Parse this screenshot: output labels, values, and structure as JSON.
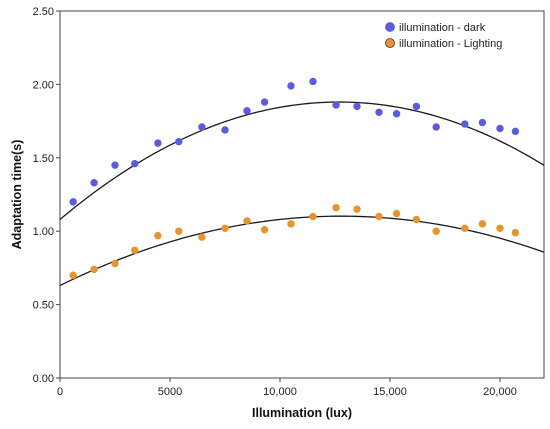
{
  "chart_data": {
    "type": "scatter",
    "xlabel": "Illumination (lux)",
    "ylabel": "Adaptation time(s)",
    "xlim": [
      0,
      22000
    ],
    "ylim": [
      0,
      2.5
    ],
    "x_ticks": [
      0,
      5000,
      10000,
      15000,
      20000
    ],
    "x_tick_labels": [
      "0",
      "5000",
      "10,000",
      "15,000",
      "20,000"
    ],
    "y_ticks": [
      0,
      0.5,
      1.0,
      1.5,
      2.0,
      2.5
    ],
    "y_tick_labels": [
      "0.00",
      "0.50",
      "1.00",
      "1.50",
      "2.00",
      "2.50"
    ],
    "grid": false,
    "legend_position": "top-right",
    "series": [
      {
        "name": "illumination - dark",
        "color": "#5b5be0",
        "marker_edge": "#5b5be0",
        "x": [
          600,
          1550,
          2500,
          3400,
          4450,
          5400,
          6450,
          7500,
          8500,
          9300,
          10500,
          11500,
          12550,
          13500,
          14500,
          15300,
          16200,
          17100,
          18400,
          19200,
          20000,
          20700
        ],
        "y": [
          1.2,
          1.33,
          1.45,
          1.46,
          1.6,
          1.61,
          1.71,
          1.69,
          1.82,
          1.88,
          1.99,
          2.02,
          1.86,
          1.85,
          1.81,
          1.8,
          1.85,
          1.71,
          1.73,
          1.74,
          1.7,
          1.68
        ],
        "fit": {
          "type": "quadratic",
          "coefficients": [
            1.08,
            0.0001261,
            -4.97e-09
          ],
          "x_range": [
            0,
            22000
          ]
        }
      },
      {
        "name": "illumination - Lighting",
        "color": "#e8942e",
        "marker_edge": "#3a3a3a",
        "x": [
          600,
          1550,
          2500,
          3400,
          4450,
          5400,
          6450,
          7500,
          8500,
          9300,
          10500,
          11500,
          12550,
          13500,
          14500,
          15300,
          16200,
          17100,
          18400,
          19200,
          20000,
          20700
        ],
        "y": [
          0.7,
          0.74,
          0.78,
          0.87,
          0.97,
          1.0,
          0.96,
          1.02,
          1.07,
          1.01,
          1.05,
          1.1,
          1.16,
          1.15,
          1.1,
          1.12,
          1.08,
          1.0,
          1.02,
          1.05,
          1.02,
          0.99
        ],
        "fit": {
          "type": "quadratic",
          "coefficients": [
            0.63,
            7.39e-05,
            -2.89e-09
          ],
          "x_range": [
            0,
            22000
          ]
        }
      }
    ]
  }
}
